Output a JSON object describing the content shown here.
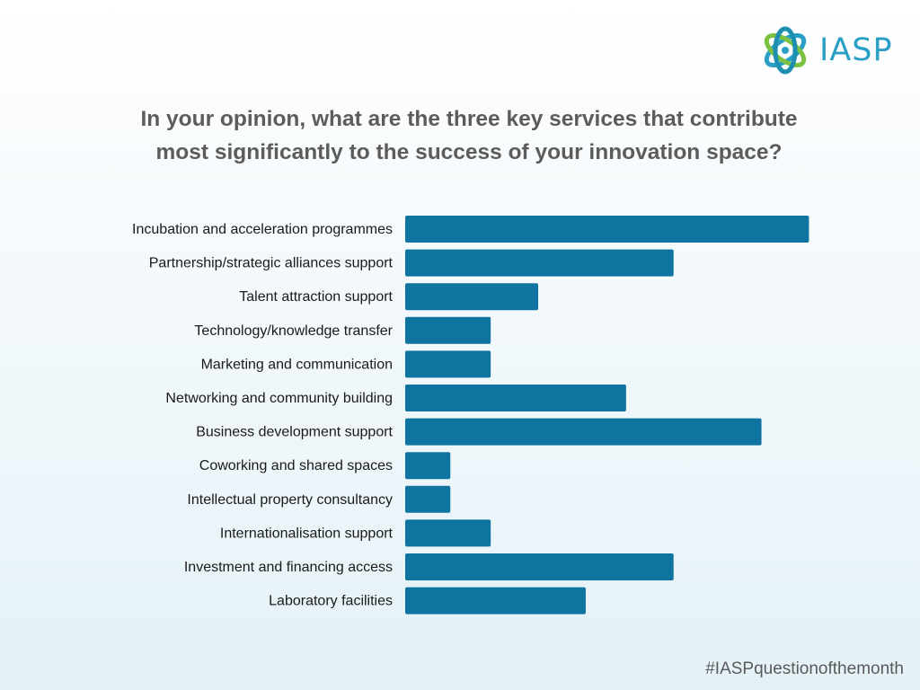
{
  "logo": {
    "text": "IASP",
    "icon": "iasp-atom-logo"
  },
  "title": {
    "line1": "In your opinion, what are the three key services that contribute",
    "line2": "most significantly to the success of your innovation space?"
  },
  "hashtag": "#IASPquestionofthemonth",
  "colors": {
    "bar": "#0f75a0",
    "title": "#5c5c5c",
    "brand": "#2a9fc5"
  },
  "chart_data": {
    "type": "bar",
    "orientation": "horizontal",
    "categories": [
      "Incubation and acceleration programmes",
      "Partnership/strategic alliances support",
      "Talent attraction support",
      "Technology/knowledge transfer",
      "Marketing and communication",
      "Networking and community building",
      "Business development support",
      "Coworking and shared spaces",
      "Intellectual property consultancy",
      "Internationalisation support",
      "Investment and financing access",
      "Laboratory facilities"
    ],
    "values": [
      17,
      11.3,
      5.6,
      3.6,
      3.6,
      9.3,
      15,
      1.9,
      1.9,
      3.6,
      11.3,
      7.6
    ],
    "xlim": [
      0,
      17.4
    ],
    "grid": false,
    "legend": "none"
  }
}
